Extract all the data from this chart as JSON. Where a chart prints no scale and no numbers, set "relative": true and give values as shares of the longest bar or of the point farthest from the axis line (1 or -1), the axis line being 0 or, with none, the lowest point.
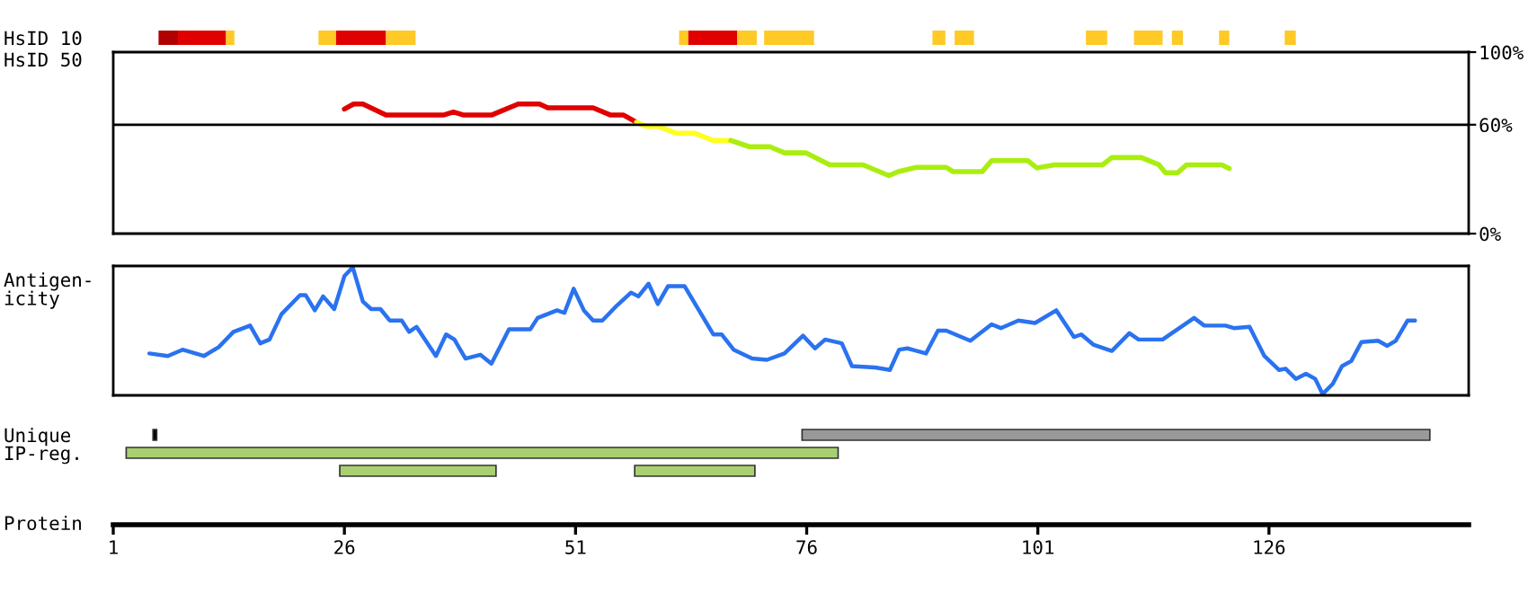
{
  "chart_data": [
    {
      "type": "bar",
      "orientation": "horizontal",
      "categories": [
        "HsID 10"
      ],
      "xlim": [
        1,
        147.6
      ],
      "tick_labels": "y",
      "series": [
        {
          "color": "#b00000",
          "values": [
            2.1
          ],
          "base": [
            5.9
          ]
        },
        {
          "color": "#e00000",
          "values": [
            5.2
          ],
          "base": [
            8.0
          ]
        },
        {
          "color": "#ffc926",
          "values": [
            0.9
          ],
          "base": [
            13.2
          ]
        },
        {
          "color": "#ffc926",
          "values": [
            1.9
          ],
          "base": [
            23.2
          ]
        },
        {
          "color": "#e00000",
          "values": [
            5.4
          ],
          "base": [
            25.1
          ]
        },
        {
          "color": "#ffc926",
          "values": [
            3.2
          ],
          "base": [
            30.5
          ]
        },
        {
          "color": "#ffc926",
          "values": [
            1.0
          ],
          "base": [
            62.2
          ]
        },
        {
          "color": "#e00000",
          "values": [
            5.3
          ],
          "base": [
            63.2
          ]
        },
        {
          "color": "#ffc926",
          "values": [
            2.1
          ],
          "base": [
            68.5
          ]
        },
        {
          "color": "#ffc926",
          "values": [
            5.4
          ],
          "base": [
            71.4
          ]
        },
        {
          "color": "#ffc926",
          "values": [
            1.4
          ],
          "base": [
            89.6
          ]
        },
        {
          "color": "#ffc926",
          "values": [
            2.1
          ],
          "base": [
            92.0
          ]
        },
        {
          "color": "#ffc926",
          "values": [
            2.3
          ],
          "base": [
            106.2
          ]
        },
        {
          "color": "#ffc926",
          "values": [
            3.1
          ],
          "base": [
            111.4
          ]
        },
        {
          "color": "#ffc926",
          "values": [
            1.2
          ],
          "base": [
            115.5
          ]
        },
        {
          "color": "#ffc926",
          "values": [
            1.1
          ],
          "base": [
            120.6
          ]
        },
        {
          "color": "#ffc926",
          "values": [
            1.2
          ],
          "base": [
            127.7
          ]
        }
      ]
    },
    {
      "type": "line",
      "ylabel": "HsID 50",
      "xlim": [
        1,
        147.6
      ],
      "ylim": [
        0,
        100
      ],
      "yticks": [
        {
          "value": 0,
          "label": "0%"
        },
        {
          "value": 60,
          "label": "60%"
        },
        {
          "value": 100,
          "label": "100%"
        }
      ],
      "tick_labels": "y",
      "ref_lines": [
        {
          "axis": "y",
          "value": 60,
          "color": "#000000"
        }
      ],
      "series": [
        {
          "color": "#e00000",
          "x": [
            26.0,
            27.0,
            28.0,
            30.5,
            36.7,
            37.8,
            38.9,
            41.9,
            44.8,
            47.1,
            48.0,
            52.9,
            54.8,
            56.2,
            57.6
          ],
          "values": [
            68.6,
            71.4,
            71.4,
            65.3,
            65.3,
            67,
            65.3,
            65.3,
            71.4,
            71.4,
            69.3,
            69.3,
            65.3,
            65.3,
            61.3
          ]
        },
        {
          "color": "#ffff20",
          "x": [
            57.6,
            58.7,
            60.0,
            61.9,
            63.9,
            65.9,
            67.8
          ],
          "values": [
            61.3,
            59,
            59,
            55.3,
            55.3,
            51.3,
            51.3
          ]
        },
        {
          "color": "#aaee11",
          "x": [
            67.8,
            69.8,
            72.0,
            73.6,
            75.9,
            78.5,
            82.1,
            84.9,
            85.9,
            87.9,
            91.1,
            91.8,
            95.0,
            96.0,
            99.9,
            100.9,
            102.8,
            108.0,
            109.0,
            112.2,
            114.1,
            114.8,
            116.1,
            117.1,
            120.9,
            121.7
          ],
          "values": [
            51.3,
            47.9,
            47.9,
            44.5,
            44.5,
            37.9,
            37.9,
            31.9,
            34.2,
            36.5,
            36.5,
            34.2,
            34.2,
            40.2,
            40.2,
            36.2,
            37.9,
            37.9,
            41.9,
            41.9,
            37.9,
            33.5,
            33.5,
            37.9,
            37.9,
            35.9
          ]
        }
      ]
    },
    {
      "type": "line",
      "ylabel": "Antigen-\nicity",
      "relative": true,
      "xlim": [
        1,
        147.6
      ],
      "tick_labels": false,
      "series": [
        {
          "color": "#2a72f0",
          "x": [
            4.9,
            6.9,
            8.5,
            10.8,
            12.4,
            14.0,
            15.8,
            16.9,
            17.9,
            19.2,
            21.2,
            21.8,
            22.8,
            23.7,
            24.9,
            26.0,
            26.9,
            28.0,
            28.9,
            29.9,
            30.9,
            32.2,
            33.0,
            33.8,
            35.9,
            37.0,
            37.9,
            39.1,
            40.7,
            41.9,
            43.8,
            46.1,
            46.9,
            49.0,
            49.8,
            50.8,
            51.9,
            52.9,
            53.9,
            55.5,
            57.0,
            57.8,
            58.9,
            59.9,
            61.0,
            62.8,
            65.9,
            66.8,
            68.1,
            70.1,
            71.7,
            73.6,
            75.6,
            76.9,
            78.0,
            79.8,
            80.9,
            83.4,
            85.0,
            86.0,
            86.9,
            88.9,
            90.2,
            91.1,
            93.7,
            96.0,
            97.0,
            98.9,
            100.7,
            103.0,
            104.9,
            105.7,
            107.0,
            109.0,
            110.9,
            111.9,
            114.5,
            117.9,
            119.0,
            121.3,
            122.2,
            123.9,
            125.5,
            127.1,
            127.8,
            128.9,
            130.0,
            131.0,
            131.8,
            132.9,
            133.9,
            134.9,
            136.0,
            137.8,
            138.8,
            139.7,
            141.0,
            141.8
          ],
          "values": [
            0.32,
            0.3,
            0.35,
            0.3,
            0.37,
            0.49,
            0.54,
            0.4,
            0.43,
            0.63,
            0.78,
            0.78,
            0.66,
            0.77,
            0.67,
            0.93,
            1.0,
            0.73,
            0.67,
            0.67,
            0.58,
            0.58,
            0.49,
            0.53,
            0.3,
            0.47,
            0.43,
            0.28,
            0.31,
            0.24,
            0.51,
            0.51,
            0.6,
            0.66,
            0.64,
            0.83,
            0.66,
            0.58,
            0.58,
            0.7,
            0.8,
            0.77,
            0.87,
            0.71,
            0.85,
            0.85,
            0.47,
            0.47,
            0.35,
            0.28,
            0.27,
            0.32,
            0.46,
            0.36,
            0.43,
            0.4,
            0.22,
            0.21,
            0.19,
            0.35,
            0.36,
            0.32,
            0.5,
            0.5,
            0.42,
            0.55,
            0.52,
            0.58,
            0.56,
            0.66,
            0.45,
            0.47,
            0.39,
            0.34,
            0.48,
            0.43,
            0.43,
            0.6,
            0.54,
            0.54,
            0.52,
            0.53,
            0.3,
            0.19,
            0.2,
            0.12,
            0.16,
            0.12,
            0.0,
            0.08,
            0.22,
            0.26,
            0.41,
            0.42,
            0.38,
            0.42,
            0.58,
            0.58
          ]
        }
      ]
    },
    {
      "type": "bar",
      "orientation": "horizontal",
      "categories": [
        "Unique",
        "IP-reg.",
        null
      ],
      "xlabel": "Protein",
      "xlim": [
        1,
        147.6
      ],
      "xticks": [
        1,
        26,
        51,
        76,
        101,
        126
      ],
      "series": [
        {
          "color": "#000000",
          "values": [
            0.4,
            null,
            null
          ],
          "base": [
            5.3,
            null,
            null
          ]
        },
        {
          "color": "#999999",
          "values": [
            67.9,
            null,
            null
          ],
          "base": [
            75.5,
            null,
            null
          ]
        },
        {
          "color": "#a8d070",
          "values": [
            null,
            77.0,
            null
          ],
          "base": [
            null,
            2.4,
            null
          ]
        },
        {
          "color": "#a8d070",
          "values": [
            null,
            null,
            16.9
          ],
          "base": [
            null,
            null,
            25.5
          ]
        },
        {
          "color": "#a8d070",
          "values": [
            null,
            null,
            13.0
          ],
          "base": [
            null,
            null,
            57.4
          ]
        }
      ]
    }
  ]
}
